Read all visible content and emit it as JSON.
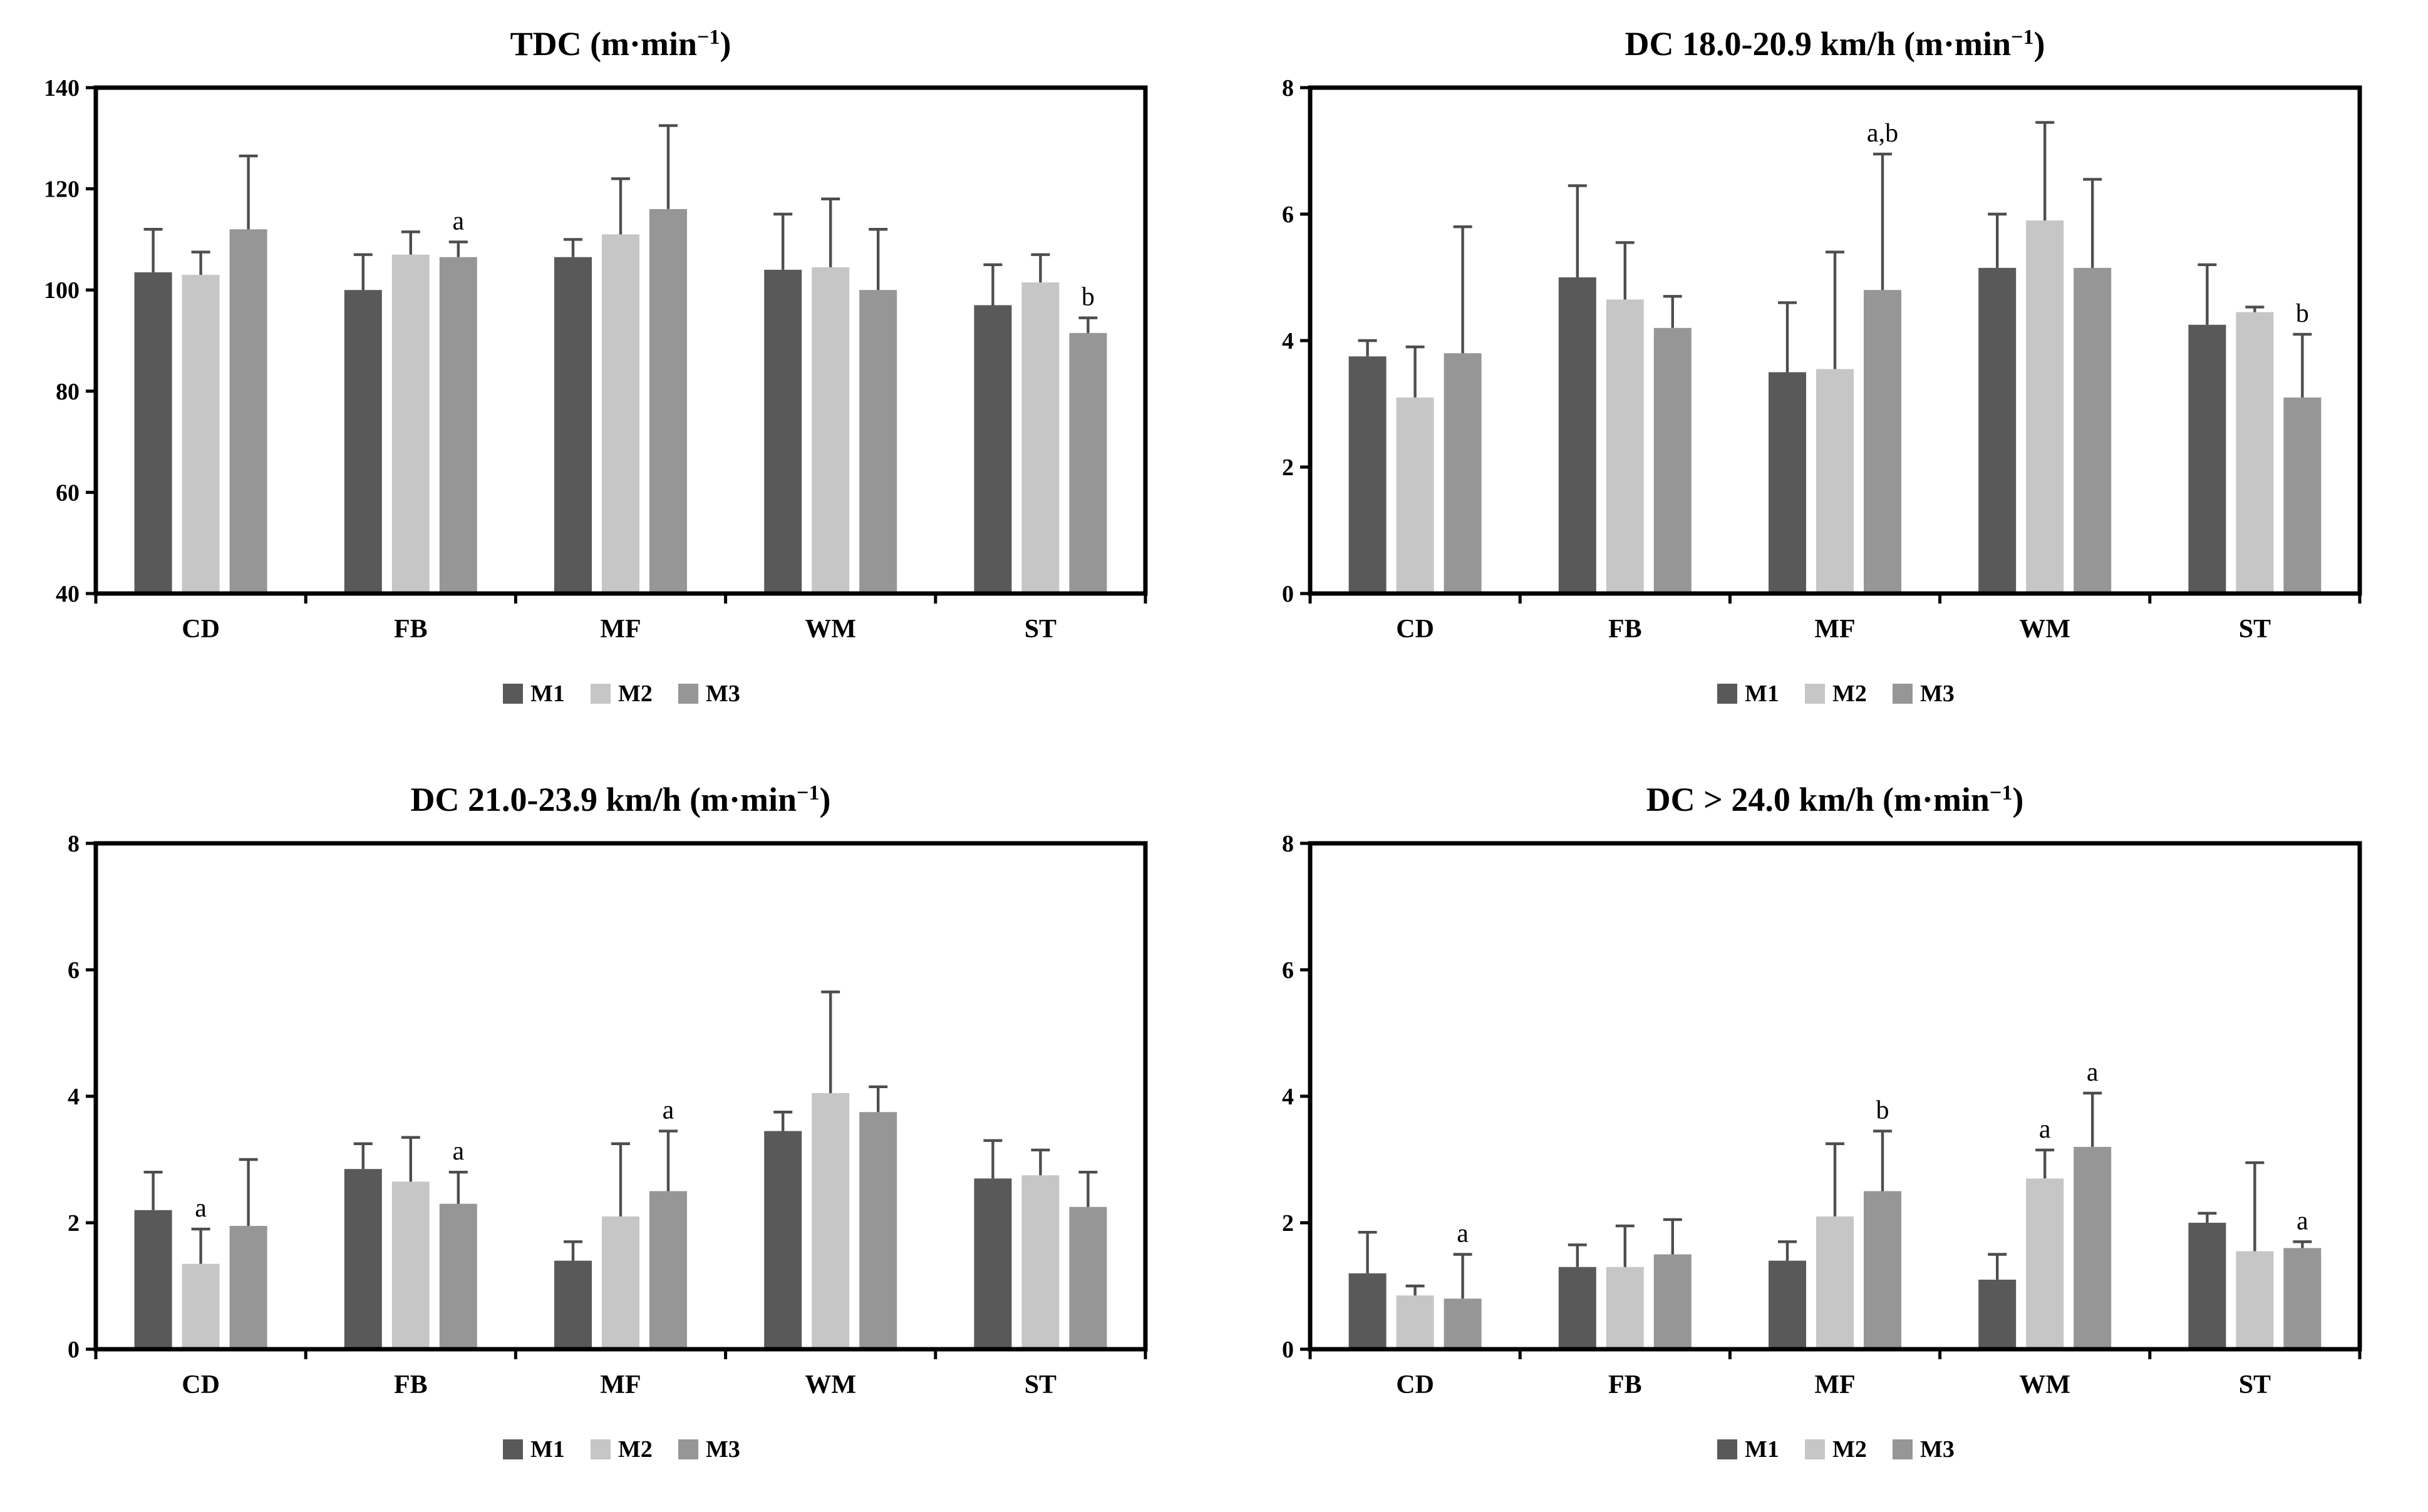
{
  "page": {
    "background": "#ffffff",
    "axis_color": "#000000",
    "error_bar_color": "#4d4d4d"
  },
  "legend": {
    "position": "bottom",
    "items": [
      {
        "label": "M1",
        "color": "#595959"
      },
      {
        "label": "M2",
        "color": "#c6c6c6"
      },
      {
        "label": "M3",
        "color": "#969696"
      }
    ]
  },
  "chart_data": [
    {
      "type": "bar",
      "title": {
        "prefix": "TDC (m·min",
        "sup": "−1",
        "suffix": ")"
      },
      "xlabel": "",
      "ylabel": "",
      "grid": false,
      "legend_position": "bottom",
      "ylim": [
        40,
        140
      ],
      "yticks": [
        40,
        60,
        80,
        100,
        120,
        140
      ],
      "categories": [
        "CD",
        "FB",
        "MF",
        "WM",
        "ST"
      ],
      "series": [
        {
          "name": "M1",
          "color": "#595959",
          "values": [
            103.5,
            100,
            106.5,
            104,
            97
          ],
          "errors_up": [
            8.5,
            7,
            3.5,
            11,
            8
          ]
        },
        {
          "name": "M2",
          "color": "#c6c6c6",
          "values": [
            103,
            107,
            111,
            104.5,
            101.5
          ],
          "errors_up": [
            4.5,
            4.5,
            11,
            13.5,
            5.5
          ]
        },
        {
          "name": "M3",
          "color": "#969696",
          "values": [
            112,
            106.5,
            116,
            100,
            91.5
          ],
          "errors_up": [
            14.5,
            3,
            16.5,
            12,
            3
          ]
        }
      ],
      "annotations": [
        {
          "category": "FB",
          "series": "M3",
          "text": "a"
        },
        {
          "category": "ST",
          "series": "M3",
          "text": "b"
        }
      ]
    },
    {
      "type": "bar",
      "title": {
        "prefix": "DC 18.0-20.9 km/h (m·min",
        "sup": "−1",
        "suffix": ")"
      },
      "xlabel": "",
      "ylabel": "",
      "grid": false,
      "legend_position": "bottom",
      "ylim": [
        0,
        8
      ],
      "yticks": [
        0,
        2,
        4,
        6,
        8
      ],
      "categories": [
        "CD",
        "FB",
        "MF",
        "WM",
        "ST"
      ],
      "series": [
        {
          "name": "M1",
          "color": "#595959",
          "values": [
            3.75,
            5.0,
            3.5,
            5.15,
            4.25
          ],
          "errors_up": [
            0.25,
            1.45,
            1.1,
            0.85,
            0.95
          ]
        },
        {
          "name": "M2",
          "color": "#c6c6c6",
          "values": [
            3.1,
            4.65,
            3.55,
            5.9,
            4.45
          ],
          "errors_up": [
            0.8,
            0.9,
            1.85,
            1.55,
            0.08
          ]
        },
        {
          "name": "M3",
          "color": "#969696",
          "values": [
            3.8,
            4.2,
            4.8,
            5.15,
            3.1
          ],
          "errors_up": [
            2.0,
            0.5,
            2.15,
            1.4,
            1.0
          ]
        }
      ],
      "annotations": [
        {
          "category": "MF",
          "series": "M3",
          "text": "a,b"
        },
        {
          "category": "ST",
          "series": "M3",
          "text": "b"
        }
      ]
    },
    {
      "type": "bar",
      "title": {
        "prefix": "DC 21.0-23.9 km/h (m·min",
        "sup": "−1",
        "suffix": ")"
      },
      "xlabel": "",
      "ylabel": "",
      "grid": false,
      "legend_position": "bottom",
      "ylim": [
        0,
        8
      ],
      "yticks": [
        0,
        2,
        4,
        6,
        8
      ],
      "categories": [
        "CD",
        "FB",
        "MF",
        "WM",
        "ST"
      ],
      "series": [
        {
          "name": "M1",
          "color": "#595959",
          "values": [
            2.2,
            2.85,
            1.4,
            3.45,
            2.7
          ],
          "errors_up": [
            0.6,
            0.4,
            0.3,
            0.3,
            0.6
          ]
        },
        {
          "name": "M2",
          "color": "#c6c6c6",
          "values": [
            1.35,
            2.65,
            2.1,
            4.05,
            2.75
          ],
          "errors_up": [
            0.55,
            0.7,
            1.15,
            1.6,
            0.4
          ]
        },
        {
          "name": "M3",
          "color": "#969696",
          "values": [
            1.95,
            2.3,
            2.5,
            3.75,
            2.25
          ],
          "errors_up": [
            1.05,
            0.5,
            0.95,
            0.4,
            0.55
          ]
        }
      ],
      "annotations": [
        {
          "category": "CD",
          "series": "M2",
          "text": "a"
        },
        {
          "category": "FB",
          "series": "M3",
          "text": "a"
        },
        {
          "category": "MF",
          "series": "M3",
          "text": "a"
        }
      ]
    },
    {
      "type": "bar",
      "title": {
        "prefix": "DC > 24.0 km/h (m·min",
        "sup": "−1",
        "suffix": ")"
      },
      "xlabel": "",
      "ylabel": "",
      "grid": false,
      "legend_position": "bottom",
      "ylim": [
        0,
        8
      ],
      "yticks": [
        0,
        2,
        4,
        6,
        8
      ],
      "categories": [
        "CD",
        "FB",
        "MF",
        "WM",
        "ST"
      ],
      "series": [
        {
          "name": "M1",
          "color": "#595959",
          "values": [
            1.2,
            1.3,
            1.4,
            1.1,
            2.0
          ],
          "errors_up": [
            0.65,
            0.35,
            0.3,
            0.4,
            0.15
          ]
        },
        {
          "name": "M2",
          "color": "#c6c6c6",
          "values": [
            0.85,
            1.3,
            2.1,
            2.7,
            1.55
          ],
          "errors_up": [
            0.15,
            0.65,
            1.15,
            0.45,
            1.4
          ]
        },
        {
          "name": "M3",
          "color": "#969696",
          "values": [
            0.8,
            1.5,
            2.5,
            3.2,
            1.6
          ],
          "errors_up": [
            0.7,
            0.55,
            0.95,
            0.85,
            0.1
          ]
        }
      ],
      "annotations": [
        {
          "category": "CD",
          "series": "M3",
          "text": "a"
        },
        {
          "category": "MF",
          "series": "M3",
          "text": "b"
        },
        {
          "category": "WM",
          "series": "M2",
          "text": "a"
        },
        {
          "category": "WM",
          "series": "M3",
          "text": "a"
        },
        {
          "category": "ST",
          "series": "M3",
          "text": "a"
        }
      ]
    }
  ]
}
